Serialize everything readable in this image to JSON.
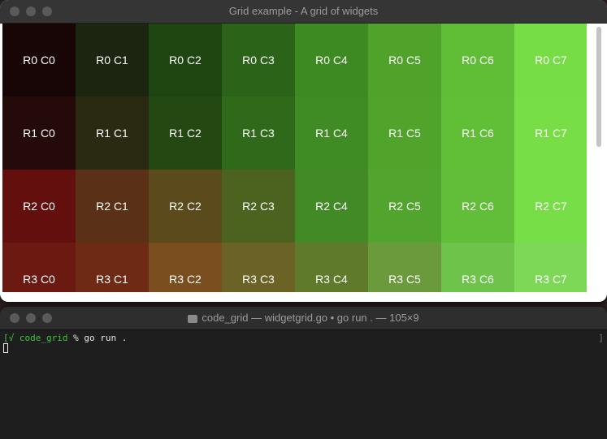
{
  "top_window": {
    "title": "Grid example - A grid of widgets"
  },
  "grid": {
    "rows": [
      {
        "cells": [
          {
            "label": "R0 C0",
            "color": "#180606"
          },
          {
            "label": "R0 C1",
            "color": "#1b2510"
          },
          {
            "label": "R0 C2",
            "color": "#1f4611"
          },
          {
            "label": "R0 C3",
            "color": "#2b6318"
          },
          {
            "label": "R0 C4",
            "color": "#3d8a22"
          },
          {
            "label": "R0 C5",
            "color": "#4fa32a"
          },
          {
            "label": "R0 C6",
            "color": "#5fbe35"
          },
          {
            "label": "R0 C7",
            "color": "#76de44"
          }
        ]
      },
      {
        "cells": [
          {
            "label": "R1 C0",
            "color": "#250a0a"
          },
          {
            "label": "R1 C1",
            "color": "#2a2a12"
          },
          {
            "label": "R1 C2",
            "color": "#234812"
          },
          {
            "label": "R1 C3",
            "color": "#2f6a1b"
          },
          {
            "label": "R1 C4",
            "color": "#408c24"
          },
          {
            "label": "R1 C5",
            "color": "#50a42c"
          },
          {
            "label": "R1 C6",
            "color": "#60be37"
          },
          {
            "label": "R1 C7",
            "color": "#77de46"
          }
        ]
      },
      {
        "cells": [
          {
            "label": "R2 C0",
            "color": "#620f0e"
          },
          {
            "label": "R2 C1",
            "color": "#5a3017"
          },
          {
            "label": "R2 C2",
            "color": "#5a4a1c"
          },
          {
            "label": "R2 C3",
            "color": "#4c6320"
          },
          {
            "label": "R2 C4",
            "color": "#418a26"
          },
          {
            "label": "R2 C5",
            "color": "#51a42e"
          },
          {
            "label": "R2 C6",
            "color": "#62be39"
          },
          {
            "label": "R2 C7",
            "color": "#78de48"
          }
        ]
      },
      {
        "cells": [
          {
            "label": "R3 C0",
            "color": "#6c1911"
          },
          {
            "label": "R3 C1",
            "color": "#6e2a15"
          },
          {
            "label": "R3 C2",
            "color": "#7a4e1e"
          },
          {
            "label": "R3 C3",
            "color": "#6b6225"
          },
          {
            "label": "R3 C4",
            "color": "#5e7a2a"
          },
          {
            "label": "R3 C5",
            "color": "#6a9a3c"
          },
          {
            "label": "R3 C6",
            "color": "#6ec44a"
          },
          {
            "label": "R3 C7",
            "color": "#7dd858"
          }
        ]
      }
    ]
  },
  "terminal": {
    "title": "code_grid — widgetgrid.go • go run . — 105×9",
    "prompt_left_mark": "[√",
    "prompt_dir": "code_grid",
    "prompt_symbol": "%",
    "command": "go run .",
    "prompt_right_mark": "]"
  }
}
